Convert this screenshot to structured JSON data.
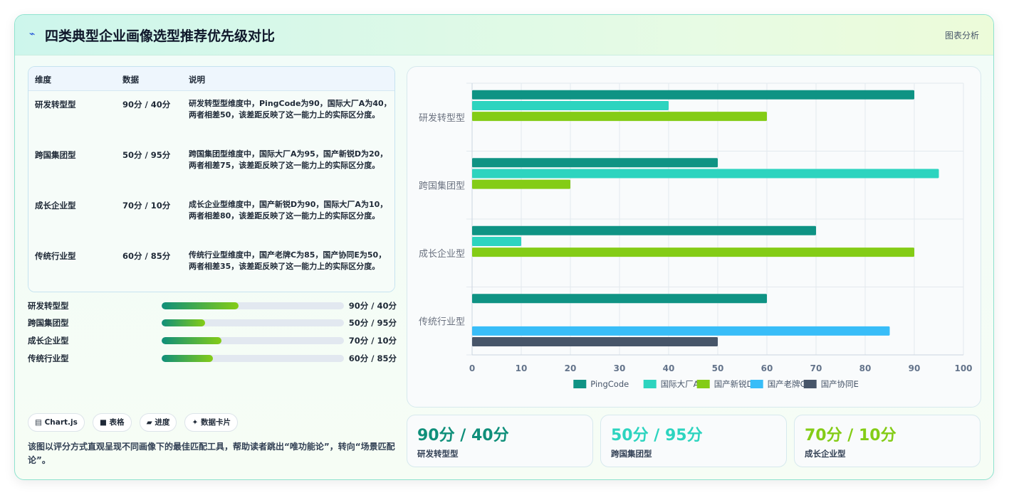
{
  "header": {
    "icon": "lightning-icon",
    "title": "四类典型企业画像选型推荐优先级对比",
    "link": "图表分析"
  },
  "table": {
    "headers": [
      "维度",
      "数据",
      "说明"
    ],
    "rows": [
      {
        "dim": "研发转型型",
        "val": "90分 / 40分",
        "desc": "研发转型型维度中，PingCode为90，国际大厂A为40，两者相差50，该差距反映了这一能力上的实际区分度。"
      },
      {
        "dim": "跨国集团型",
        "val": "50分 / 95分",
        "desc": "跨国集团型维度中，国际大厂A为95，国产新锐D为20，两者相差75，该差距反映了这一能力上的实际区分度。"
      },
      {
        "dim": "成长企业型",
        "val": "70分 / 10分",
        "desc": "成长企业型维度中，国产新锐D为90，国际大厂A为10，两者相差80，该差距反映了这一能力上的实际区分度。"
      },
      {
        "dim": "传统行业型",
        "val": "60分 / 85分",
        "desc": "传统行业型维度中，国产老牌C为85，国产协同E为50，两者相差35，该差距反映了这一能力上的实际区分度。"
      }
    ]
  },
  "progress": [
    {
      "label": "研发转型型",
      "value": "90分 / 40分",
      "fraction": 0.42
    },
    {
      "label": "跨国集团型",
      "value": "50分 / 95分",
      "fraction": 0.24
    },
    {
      "label": "成长企业型",
      "value": "70分 / 10分",
      "fraction": 0.33
    },
    {
      "label": "传统行业型",
      "value": "60分 / 85分",
      "fraction": 0.28
    }
  ],
  "chips": [
    {
      "icon": "chart-icon",
      "label": "▤ Chart.js"
    },
    {
      "icon": "table-icon",
      "label": "■ 表格"
    },
    {
      "icon": "progress-icon",
      "label": "▰ 进度"
    },
    {
      "icon": "sparkle-icon",
      "label": "✦ 数据卡片"
    }
  ],
  "footnote": "该图以评分方式直观呈现不同画像下的最佳匹配工具，帮助读者跳出“唯功能论”，转向“场景匹配论”。",
  "kpis": [
    {
      "value": "90分 / 40分",
      "label": "研发转型型",
      "color": "#0f8f7a"
    },
    {
      "value": "50分 / 95分",
      "label": "跨国集团型",
      "color": "#2dd4bf"
    },
    {
      "value": "70分 / 10分",
      "label": "成长企业型",
      "color": "#84cc16"
    }
  ],
  "chart_data": {
    "type": "bar",
    "orientation": "horizontal",
    "categories": [
      "研发转型型",
      "跨国集团型",
      "成长企业型",
      "传统行业型"
    ],
    "series": [
      {
        "name": "PingCode",
        "color": "#0f9384",
        "values": [
          90,
          50,
          70,
          60
        ]
      },
      {
        "name": "国际大厂A",
        "color": "#2dd4bf",
        "values": [
          40,
          95,
          10,
          null
        ]
      },
      {
        "name": "国产新锐D",
        "color": "#84cc16",
        "values": [
          60,
          20,
          90,
          null
        ]
      },
      {
        "name": "国产老牌C",
        "color": "#38bdf8",
        "values": [
          null,
          null,
          null,
          85
        ]
      },
      {
        "name": "国产协同E",
        "color": "#475569",
        "values": [
          null,
          null,
          null,
          50
        ]
      }
    ],
    "xlim": [
      0,
      100
    ],
    "xticks": [
      0,
      10,
      20,
      30,
      40,
      50,
      60,
      70,
      80,
      90,
      100
    ],
    "grid": true,
    "legend": "bottom"
  }
}
